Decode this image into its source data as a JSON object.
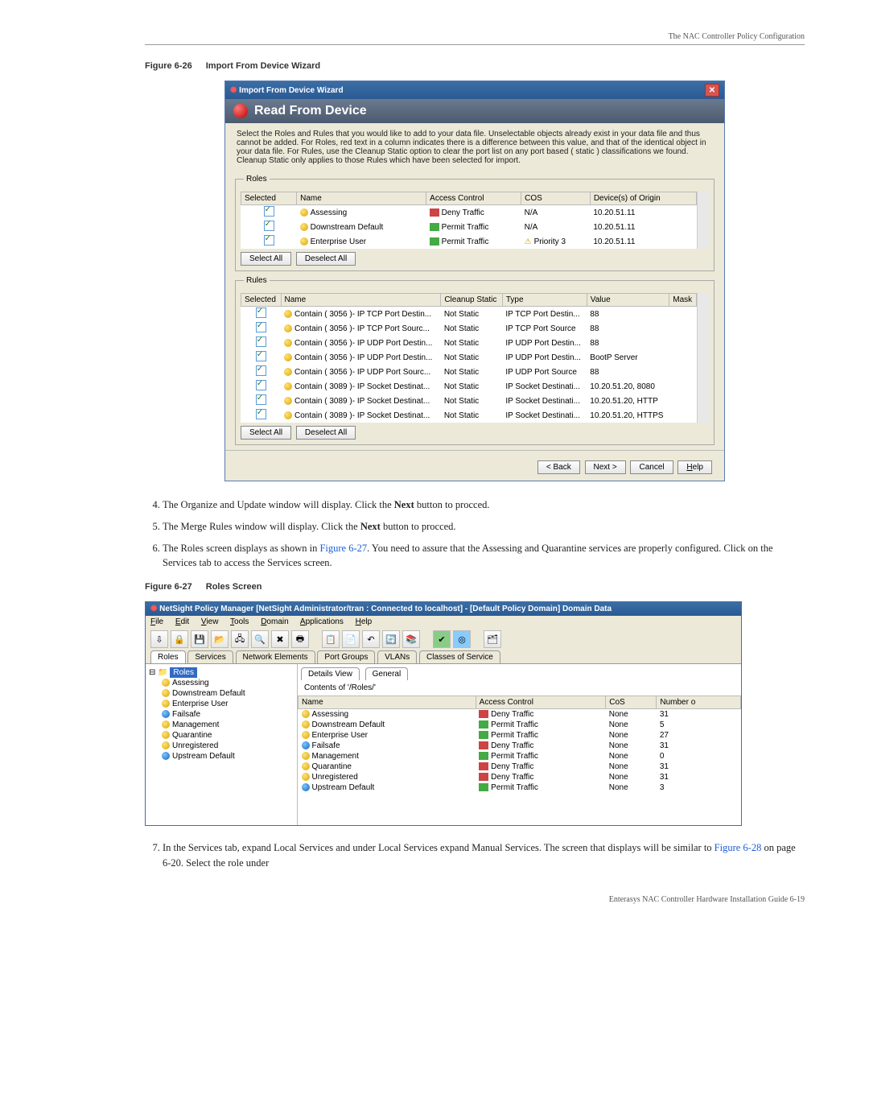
{
  "page_header": "The NAC Controller Policy Configuration",
  "fig1": {
    "label": "Figure 6-26",
    "title": "Import From Device Wizard"
  },
  "dialog1": {
    "title": "Import From Device Wizard",
    "banner": "Read From Device",
    "instructions": "Select the Roles and Rules that you would like to add to your data file. Unselectable objects already exist in your data file and thus cannot be added. For Roles, red text in a column indicates there is a difference between this value, and that of the identical object in your data file. For Rules, use the Cleanup Static option to clear the port list on any port based ( static ) classifications we found. Cleanup Static only applies to those Rules which have been selected for import.",
    "roles_box": "Roles",
    "rules_box": "Rules",
    "roles_headers": [
      "Selected",
      "Name",
      "Access Control",
      "COS",
      "Device(s) of Origin"
    ],
    "roles_rows": [
      {
        "name": "Assessing",
        "ac": "Deny Traffic",
        "cos": "N/A",
        "dev": "10.20.51.11",
        "circ": "y"
      },
      {
        "name": "Downstream Default",
        "ac": "Permit Traffic",
        "cos": "N/A",
        "dev": "10.20.51.11",
        "circ": "y"
      },
      {
        "name": "Enterprise User",
        "ac": "Permit Traffic",
        "cos": "Priority 3",
        "dev": "10.20.51.11",
        "circ": "y",
        "prio": true
      }
    ],
    "rules_headers": [
      "Selected",
      "Name",
      "Cleanup Static",
      "Type",
      "Value",
      "Mask"
    ],
    "rules_rows": [
      {
        "name": "Contain ( 3056 )- IP TCP Port Destin...",
        "cs": "Not Static",
        "type": "IP TCP Port Destin...",
        "value": "88"
      },
      {
        "name": "Contain ( 3056 )- IP TCP Port Sourc...",
        "cs": "Not Static",
        "type": "IP TCP Port Source",
        "value": "88"
      },
      {
        "name": "Contain ( 3056 )- IP UDP Port Destin...",
        "cs": "Not Static",
        "type": "IP UDP Port Destin...",
        "value": "88"
      },
      {
        "name": "Contain ( 3056 )- IP UDP Port Destin...",
        "cs": "Not Static",
        "type": "IP UDP Port Destin...",
        "value": "BootP Server"
      },
      {
        "name": "Contain ( 3056 )- IP UDP Port Sourc...",
        "cs": "Not Static",
        "type": "IP UDP Port Source",
        "value": "88"
      },
      {
        "name": "Contain ( 3089 )- IP Socket Destinat...",
        "cs": "Not Static",
        "type": "IP Socket Destinati...",
        "value": "10.20.51.20, 8080"
      },
      {
        "name": "Contain ( 3089 )- IP Socket Destinat...",
        "cs": "Not Static",
        "type": "IP Socket Destinati...",
        "value": "10.20.51.20, HTTP"
      },
      {
        "name": "Contain ( 3089 )- IP Socket Destinat...",
        "cs": "Not Static",
        "type": "IP Socket Destinati...",
        "value": "10.20.51.20, HTTPS"
      }
    ],
    "select_all": "Select All",
    "deselect_all": "Deselect All",
    "back": "Back",
    "next": "Next",
    "cancel": "Cancel",
    "help": "Help"
  },
  "step4": "The Organize and Update window will display. Click the ",
  "step4b": " button to procced.",
  "step5": "The Merge Rules window will display. Click the ",
  "step5b": " button to procced.",
  "step6a": "The Roles screen displays as shown in ",
  "step6link": "Figure 6-27",
  "step6b": ". You need to assure that the Assessing and Quarantine services are properly configured. Click on the Services tab to access the Services screen.",
  "next_bold": "Next",
  "fig2": {
    "label": "Figure 6-27",
    "title": "Roles Screen"
  },
  "pm": {
    "title": "NetSight Policy Manager [NetSight Administrator/tran : Connected to localhost] - [Default Policy Domain] Domain Data",
    "menus": [
      "File",
      "Edit",
      "View",
      "Tools",
      "Domain",
      "Applications",
      "Help"
    ],
    "tabs": [
      "Roles",
      "Services",
      "Network Elements",
      "Port Groups",
      "VLANs",
      "Classes of Service"
    ],
    "tree_root": "Roles",
    "tree_items": [
      "Assessing",
      "Downstream Default",
      "Enterprise User",
      "Failsafe",
      "Management",
      "Quarantine",
      "Unregistered",
      "Upstream Default"
    ],
    "subtabs": [
      "Details View",
      "General"
    ],
    "contents": "Contents of '/Roles/'",
    "table_headers": [
      "Name",
      "Access Control",
      "CoS",
      "Number o"
    ],
    "rows": [
      {
        "n": "Assessing",
        "ac": "Deny Traffic",
        "cos": "None",
        "num": "31",
        "c": "y"
      },
      {
        "n": "Downstream Default",
        "ac": "Permit Traffic",
        "cos": "None",
        "num": "5",
        "c": "y"
      },
      {
        "n": "Enterprise User",
        "ac": "Permit Traffic",
        "cos": "None",
        "num": "27",
        "c": "y"
      },
      {
        "n": "Failsafe",
        "ac": "Deny Traffic",
        "cos": "None",
        "num": "31",
        "c": "b"
      },
      {
        "n": "Management",
        "ac": "Permit Traffic",
        "cos": "None",
        "num": "0",
        "c": "y"
      },
      {
        "n": "Quarantine",
        "ac": "Deny Traffic",
        "cos": "None",
        "num": "31",
        "c": "y"
      },
      {
        "n": "Unregistered",
        "ac": "Deny Traffic",
        "cos": "None",
        "num": "31",
        "c": "y"
      },
      {
        "n": "Upstream Default",
        "ac": "Permit Traffic",
        "cos": "None",
        "num": "3",
        "c": "b"
      }
    ]
  },
  "step7a": "In the Services tab, expand Local Services and under Local Services expand Manual Services. The screen that displays will be similar to ",
  "step7link": "Figure 6-28",
  "step7b": " on page 6-20. Select the role under",
  "footer": "Enterasys NAC Controller Hardware Installation Guide    6-19"
}
